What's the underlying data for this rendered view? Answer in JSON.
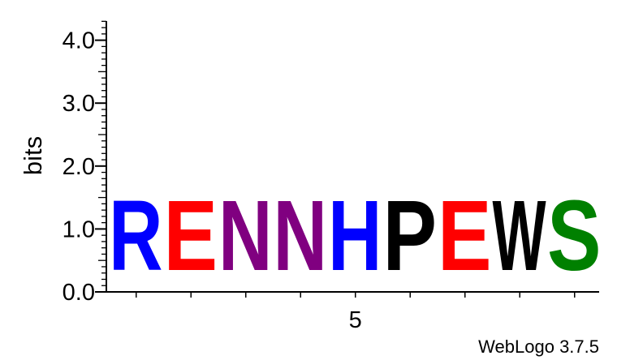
{
  "chart_data": {
    "type": "sequence-logo",
    "ylabel": "bits",
    "ylim": [
      0,
      4.3
    ],
    "y_ticks": [
      "0.0",
      "1.0",
      "2.0",
      "3.0",
      "4.0"
    ],
    "x_tick_label": "5",
    "x_labeled_position": 5,
    "positions": [
      {
        "pos": 1,
        "letter": "R",
        "bits": 1.78,
        "color": "#0000ff"
      },
      {
        "pos": 2,
        "letter": "E",
        "bits": 1.78,
        "color": "#ff0000"
      },
      {
        "pos": 3,
        "letter": "N",
        "bits": 1.78,
        "color": "#800080"
      },
      {
        "pos": 4,
        "letter": "N",
        "bits": 1.78,
        "color": "#800080"
      },
      {
        "pos": 5,
        "letter": "H",
        "bits": 1.78,
        "color": "#0000ff"
      },
      {
        "pos": 6,
        "letter": "P",
        "bits": 1.78,
        "color": "#000000"
      },
      {
        "pos": 7,
        "letter": "E",
        "bits": 1.78,
        "color": "#ff0000"
      },
      {
        "pos": 8,
        "letter": "W",
        "bits": 1.78,
        "color": "#000000"
      },
      {
        "pos": 9,
        "letter": "S",
        "bits": 1.78,
        "color": "#008000"
      }
    ]
  },
  "footer": "WebLogo 3.7.5"
}
